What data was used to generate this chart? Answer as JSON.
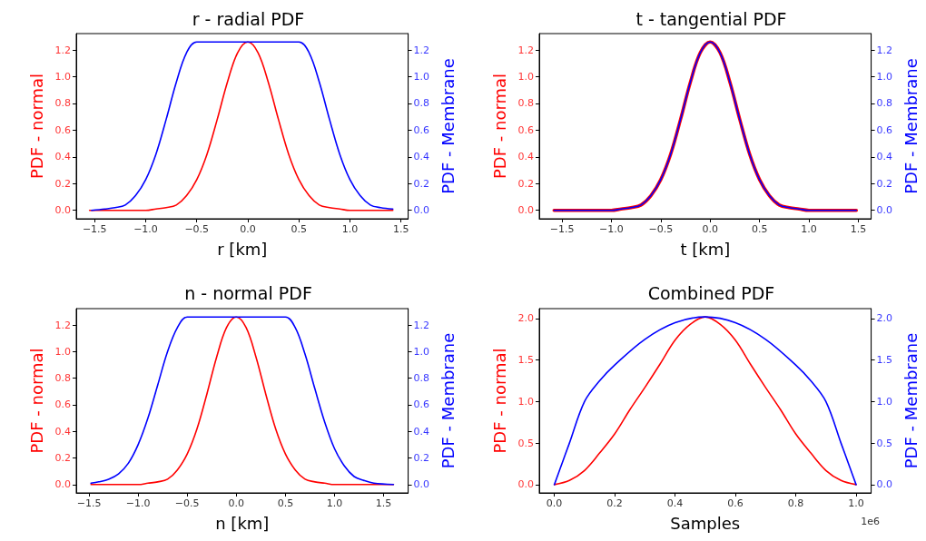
{
  "chart_data": [
    {
      "type": "line",
      "title": "r - radial PDF",
      "xlabel": "r [km]",
      "ylabel": "PDF - normal",
      "y2label": "PDF - Membrane",
      "marker": "none",
      "grid": false,
      "xlim": [
        -1.68,
        1.57
      ],
      "xticks": [
        {
          "value": -1.5,
          "label": "−1.5"
        },
        {
          "value": -1,
          "label": "−1.0"
        },
        {
          "value": -0.5,
          "label": "−0.5"
        },
        {
          "value": 0,
          "label": "0.0"
        },
        {
          "value": 0.5,
          "label": "0.5"
        },
        {
          "value": 1,
          "label": "1.0"
        },
        {
          "value": 1.5,
          "label": "1.5"
        }
      ],
      "ylim": [
        -0.063,
        1.323
      ],
      "yticks": [
        {
          "value": 0,
          "label": "0.0"
        },
        {
          "value": 0.2,
          "label": "0.2"
        },
        {
          "value": 0.4,
          "label": "0.4"
        },
        {
          "value": 0.6,
          "label": "0.6"
        },
        {
          "value": 0.8,
          "label": "0.8"
        },
        {
          "value": 1,
          "label": "1.0"
        },
        {
          "value": 1.2,
          "label": "1.2"
        }
      ],
      "y2lim": [
        -0.063,
        1.323
      ],
      "y2ticks": [
        {
          "value": 0,
          "label": "0.0"
        },
        {
          "value": 0.2,
          "label": "0.2"
        },
        {
          "value": 0.4,
          "label": "0.4"
        },
        {
          "value": 0.6,
          "label": "0.6"
        },
        {
          "value": 0.8,
          "label": "0.8"
        },
        {
          "value": 1,
          "label": "1.0"
        },
        {
          "value": 1.2,
          "label": "1.2"
        }
      ],
      "series": [
        {
          "color": "#ff0000",
          "x": [
            -1.55,
            -1.2,
            -1.0,
            -0.9,
            -0.8,
            -0.7,
            -0.6,
            -0.5,
            -0.4,
            -0.3,
            -0.2,
            -0.1,
            0,
            0.1,
            0.2,
            0.3,
            0.4,
            0.5,
            0.6,
            0.7,
            0.8,
            0.9,
            1.0,
            1.2,
            1.42
          ],
          "values": [
            0,
            0,
            0,
            0.01,
            0.02,
            0.04,
            0.11,
            0.23,
            0.42,
            0.68,
            0.96,
            1.18,
            1.26,
            1.18,
            0.96,
            0.68,
            0.42,
            0.23,
            0.11,
            0.04,
            0.02,
            0.01,
            0,
            0,
            0
          ]
        },
        {
          "color": "#0000ff",
          "axis": "y2",
          "x": [
            -1.53,
            -1.4,
            -1.3,
            -1.2,
            -1.1,
            -1.0,
            -0.9,
            -0.8,
            -0.7,
            -0.6,
            -0.5,
            0.5,
            0.6,
            0.7,
            0.8,
            0.9,
            1.0,
            1.1,
            1.2,
            1.3,
            1.42
          ],
          "values": [
            0,
            0.01,
            0.02,
            0.04,
            0.11,
            0.23,
            0.42,
            0.68,
            0.96,
            1.18,
            1.26,
            1.26,
            1.18,
            0.96,
            0.68,
            0.42,
            0.23,
            0.11,
            0.04,
            0.02,
            0.01
          ]
        }
      ]
    },
    {
      "type": "line",
      "title": "t - tangential PDF",
      "xlabel": "t [km]",
      "ylabel": "PDF - normal",
      "y2label": "PDF - Membrane",
      "marker": "none",
      "grid": false,
      "xlim": [
        -1.73,
        1.63
      ],
      "xticks": [
        {
          "value": -1.5,
          "label": "−1.5"
        },
        {
          "value": -1,
          "label": "−1.0"
        },
        {
          "value": -0.5,
          "label": "−0.5"
        },
        {
          "value": 0,
          "label": "0.0"
        },
        {
          "value": 0.5,
          "label": "0.5"
        },
        {
          "value": 1,
          "label": "1.0"
        },
        {
          "value": 1.5,
          "label": "1.5"
        }
      ],
      "ylim": [
        -0.063,
        1.323
      ],
      "yticks": [
        {
          "value": 0,
          "label": "0.0"
        },
        {
          "value": 0.2,
          "label": "0.2"
        },
        {
          "value": 0.4,
          "label": "0.4"
        },
        {
          "value": 0.6,
          "label": "0.6"
        },
        {
          "value": 0.8,
          "label": "0.8"
        },
        {
          "value": 1,
          "label": "1.0"
        },
        {
          "value": 1.2,
          "label": "1.2"
        }
      ],
      "y2lim": [
        -0.063,
        1.323
      ],
      "y2ticks": [
        {
          "value": 0,
          "label": "0.0"
        },
        {
          "value": 0.2,
          "label": "0.2"
        },
        {
          "value": 0.4,
          "label": "0.4"
        },
        {
          "value": 0.6,
          "label": "0.6"
        },
        {
          "value": 0.8,
          "label": "0.8"
        },
        {
          "value": 1,
          "label": "1.0"
        },
        {
          "value": 1.2,
          "label": "1.2"
        }
      ],
      "series": [
        {
          "color": "#ff0000",
          "x": [
            -1.58,
            -1.2,
            -1.0,
            -0.9,
            -0.8,
            -0.7,
            -0.6,
            -0.5,
            -0.4,
            -0.3,
            -0.2,
            -0.1,
            0,
            0.1,
            0.2,
            0.3,
            0.4,
            0.5,
            0.6,
            0.7,
            0.8,
            0.9,
            1.0,
            1.2,
            1.48
          ],
          "values": [
            0,
            0,
            0,
            0.01,
            0.02,
            0.04,
            0.11,
            0.23,
            0.42,
            0.68,
            0.96,
            1.18,
            1.26,
            1.18,
            0.96,
            0.68,
            0.42,
            0.23,
            0.11,
            0.04,
            0.02,
            0.01,
            0,
            0,
            0
          ]
        },
        {
          "color": "#0000ff",
          "axis": "y2",
          "x": [
            -1.58,
            -1.2,
            -1.0,
            -0.9,
            -0.8,
            -0.7,
            -0.6,
            -0.5,
            -0.4,
            -0.3,
            -0.2,
            -0.1,
            0,
            0.1,
            0.2,
            0.3,
            0.4,
            0.5,
            0.6,
            0.7,
            0.8,
            0.9,
            1.0,
            1.2,
            1.48
          ],
          "values": [
            0,
            0,
            0,
            0.01,
            0.02,
            0.04,
            0.11,
            0.23,
            0.42,
            0.68,
            0.96,
            1.18,
            1.26,
            1.18,
            0.96,
            0.68,
            0.42,
            0.23,
            0.11,
            0.04,
            0.02,
            0.01,
            0,
            0,
            0
          ]
        }
      ]
    },
    {
      "type": "line",
      "title": "n - normal PDF",
      "xlabel": "n [km]",
      "ylabel": "PDF - normal",
      "y2label": "PDF - Membrane",
      "marker": "none",
      "grid": false,
      "xlim": [
        -1.63,
        1.75
      ],
      "xticks": [
        {
          "value": -1.5,
          "label": "−1.5"
        },
        {
          "value": -1,
          "label": "−1.0"
        },
        {
          "value": -0.5,
          "label": "−0.5"
        },
        {
          "value": 0,
          "label": "0.0"
        },
        {
          "value": 0.5,
          "label": "0.5"
        },
        {
          "value": 1,
          "label": "1.0"
        },
        {
          "value": 1.5,
          "label": "1.5"
        }
      ],
      "ylim": [
        -0.063,
        1.323
      ],
      "yticks": [
        {
          "value": 0,
          "label": "0.0"
        },
        {
          "value": 0.2,
          "label": "0.2"
        },
        {
          "value": 0.4,
          "label": "0.4"
        },
        {
          "value": 0.6,
          "label": "0.6"
        },
        {
          "value": 0.8,
          "label": "0.8"
        },
        {
          "value": 1,
          "label": "1.0"
        },
        {
          "value": 1.2,
          "label": "1.2"
        }
      ],
      "y2lim": [
        -0.063,
        1.323
      ],
      "y2ticks": [
        {
          "value": 0,
          "label": "0.0"
        },
        {
          "value": 0.2,
          "label": "0.2"
        },
        {
          "value": 0.4,
          "label": "0.4"
        },
        {
          "value": 0.6,
          "label": "0.6"
        },
        {
          "value": 0.8,
          "label": "0.8"
        },
        {
          "value": 1,
          "label": "1.0"
        },
        {
          "value": 1.2,
          "label": "1.2"
        }
      ],
      "series": [
        {
          "color": "#ff0000",
          "x": [
            -1.48,
            -1.2,
            -1.0,
            -0.9,
            -0.8,
            -0.7,
            -0.6,
            -0.5,
            -0.4,
            -0.3,
            -0.2,
            -0.1,
            0,
            0.1,
            0.2,
            0.3,
            0.4,
            0.5,
            0.6,
            0.7,
            0.8,
            0.9,
            1.0,
            1.2,
            1.6
          ],
          "values": [
            0,
            0,
            0,
            0.01,
            0.02,
            0.04,
            0.11,
            0.23,
            0.42,
            0.68,
            0.96,
            1.18,
            1.26,
            1.18,
            0.96,
            0.68,
            0.42,
            0.23,
            0.11,
            0.04,
            0.02,
            0.01,
            0,
            0,
            0
          ]
        },
        {
          "color": "#0000ff",
          "axis": "y2",
          "x": [
            -1.48,
            -1.4,
            -1.3,
            -1.2,
            -1.1,
            -1.0,
            -0.9,
            -0.8,
            -0.7,
            -0.6,
            -0.5,
            0.5,
            0.6,
            0.7,
            0.8,
            0.9,
            1.0,
            1.1,
            1.2,
            1.3,
            1.4,
            1.6
          ],
          "values": [
            0.01,
            0.02,
            0.04,
            0.08,
            0.16,
            0.3,
            0.5,
            0.75,
            1.0,
            1.18,
            1.26,
            1.26,
            1.18,
            0.98,
            0.72,
            0.47,
            0.27,
            0.14,
            0.06,
            0.03,
            0.01,
            0
          ]
        }
      ]
    },
    {
      "type": "line",
      "title": "Combined PDF",
      "xlabel": "Samples",
      "ylabel": "PDF - normal",
      "y2label": "PDF - Membrane",
      "marker": "none",
      "grid": false,
      "annotations": [
        "1e6"
      ],
      "xlim": [
        -0.05,
        1.05
      ],
      "xticks": [
        {
          "value": 0,
          "label": "0.0"
        },
        {
          "value": 0.2,
          "label": "0.2"
        },
        {
          "value": 0.4,
          "label": "0.4"
        },
        {
          "value": 0.6,
          "label": "0.6"
        },
        {
          "value": 0.8,
          "label": "0.8"
        },
        {
          "value": 1,
          "label": "1.0"
        }
      ],
      "ylim": [
        -0.1,
        2.12
      ],
      "yticks": [
        {
          "value": 0,
          "label": "0.0"
        },
        {
          "value": 0.5,
          "label": "0.5"
        },
        {
          "value": 1,
          "label": "1.0"
        },
        {
          "value": 1.5,
          "label": "1.5"
        },
        {
          "value": 2,
          "label": "2.0"
        }
      ],
      "y2lim": [
        -0.1,
        2.12
      ],
      "y2ticks": [
        {
          "value": 0,
          "label": "0.0"
        },
        {
          "value": 0.5,
          "label": "0.5"
        },
        {
          "value": 1,
          "label": "1.0"
        },
        {
          "value": 1.5,
          "label": "1.5"
        },
        {
          "value": 2,
          "label": "2.0"
        }
      ],
      "series": [
        {
          "color": "#ff0000",
          "x": [
            0,
            0.05,
            0.1,
            0.15,
            0.2,
            0.25,
            0.3,
            0.35,
            0.4,
            0.45,
            0.5,
            0.55,
            0.6,
            0.65,
            0.7,
            0.75,
            0.8,
            0.85,
            0.9,
            0.95,
            1
          ],
          "values": [
            0,
            0.05,
            0.17,
            0.38,
            0.61,
            0.9,
            1.17,
            1.45,
            1.74,
            1.93,
            2.02,
            1.93,
            1.74,
            1.45,
            1.17,
            0.9,
            0.61,
            0.38,
            0.17,
            0.05,
            0
          ]
        },
        {
          "color": "#0000ff",
          "axis": "y2",
          "x": [
            0,
            0.02,
            0.05,
            0.1,
            0.15,
            0.2,
            0.3,
            0.4,
            0.5,
            0.6,
            0.7,
            0.8,
            0.85,
            0.9,
            0.95,
            0.98,
            1
          ],
          "values": [
            0,
            0.2,
            0.5,
            1.0,
            1.25,
            1.44,
            1.75,
            1.95,
            2.02,
            1.95,
            1.75,
            1.44,
            1.25,
            1.0,
            0.5,
            0.2,
            0
          ]
        }
      ]
    }
  ]
}
